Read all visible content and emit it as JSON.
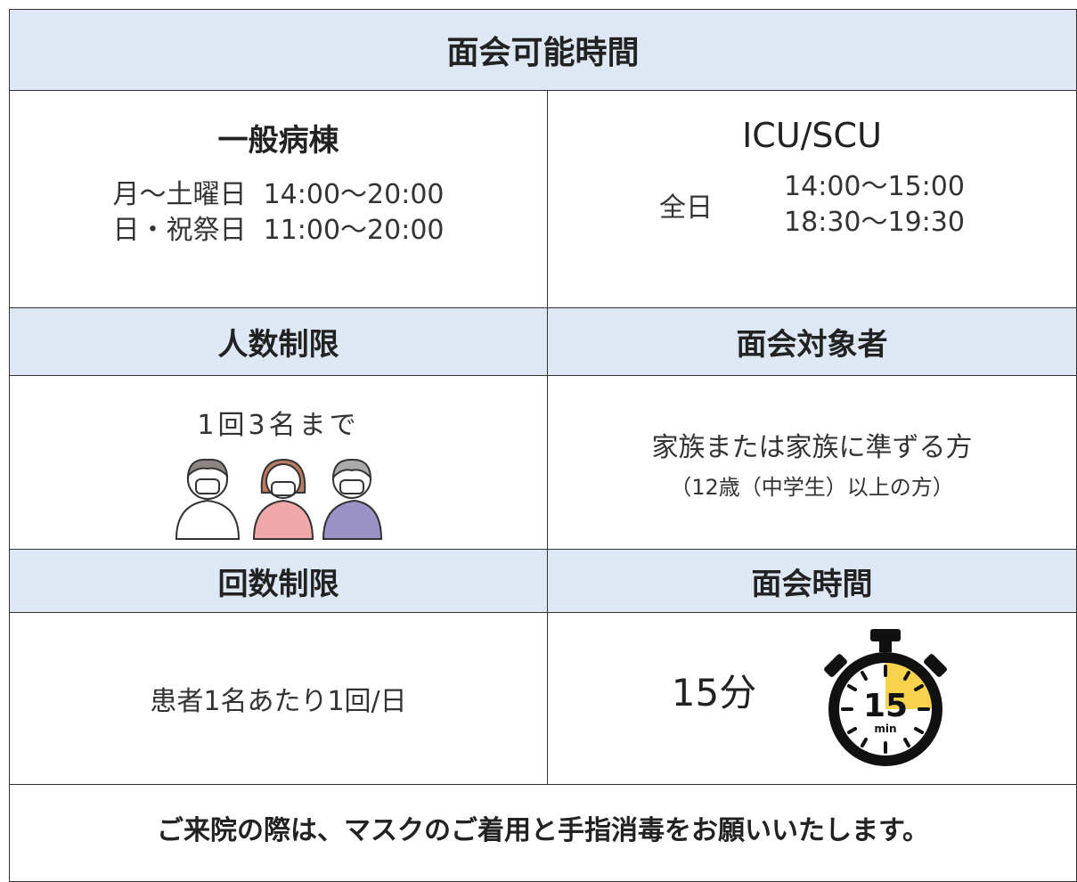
{
  "title": "面会可能時間",
  "general_ward": {
    "heading": "一般病棟",
    "schedule": [
      {
        "days": "月～土曜日",
        "hours": "14:00～20:00"
      },
      {
        "days": "日・祝祭日",
        "hours": "11:00～20:00"
      }
    ]
  },
  "icu_scu": {
    "heading": "ICU/SCU",
    "days": "全日",
    "hours": [
      "14:00～15:00",
      "18:30～19:30"
    ]
  },
  "headcount_limit": {
    "heading": "人数制限",
    "text": "1回3名まで"
  },
  "eligible_visitors": {
    "heading": "面会対象者",
    "text": "家族または家族に準ずる方",
    "note": "（12歳（中学生）以上の方）"
  },
  "frequency_limit": {
    "heading": "回数制限",
    "text": "患者1名あたり1回/日"
  },
  "visit_duration": {
    "heading": "面会時間",
    "text": "15分",
    "timer_number": "15",
    "timer_unit": "min"
  },
  "footer": "ご来院の際は、マスクのご着用と手指消毒をお願いいたします。"
}
